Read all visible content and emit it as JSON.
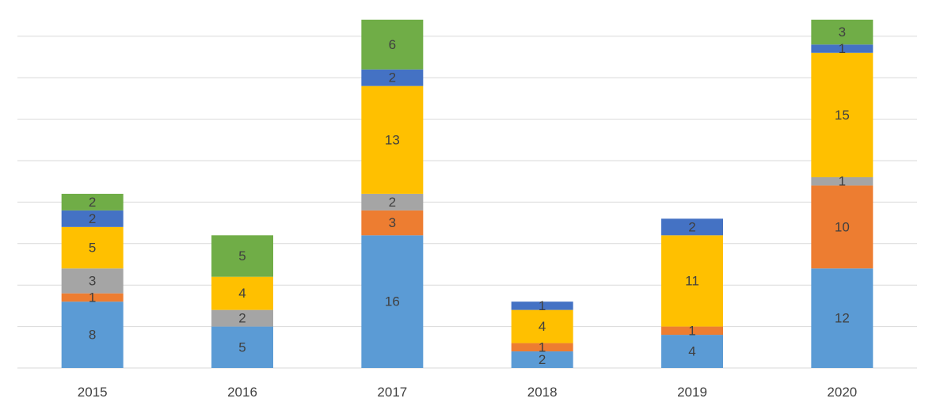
{
  "chart_data": {
    "type": "bar",
    "stacked": true,
    "categories": [
      "2015",
      "2016",
      "2017",
      "2018",
      "2019",
      "2020"
    ],
    "series": [
      {
        "values": [
          8,
          5,
          16,
          2,
          4,
          12
        ],
        "color": "#5b9bd5"
      },
      {
        "values": [
          1,
          0,
          3,
          1,
          1,
          10
        ],
        "color": "#ed7d31"
      },
      {
        "values": [
          3,
          2,
          2,
          0,
          0,
          1
        ],
        "color": "#a5a5a5"
      },
      {
        "values": [
          5,
          4,
          13,
          4,
          11,
          15
        ],
        "color": "#ffc000"
      },
      {
        "values": [
          2,
          0,
          2,
          1,
          2,
          1
        ],
        "color": "#4472c4"
      },
      {
        "values": [
          2,
          5,
          6,
          0,
          0,
          3
        ],
        "color": "#70ad47"
      }
    ],
    "ylim": [
      0,
      42
    ],
    "gridlines": true,
    "grid_step": 5,
    "legend": "none",
    "data_labels": true
  }
}
